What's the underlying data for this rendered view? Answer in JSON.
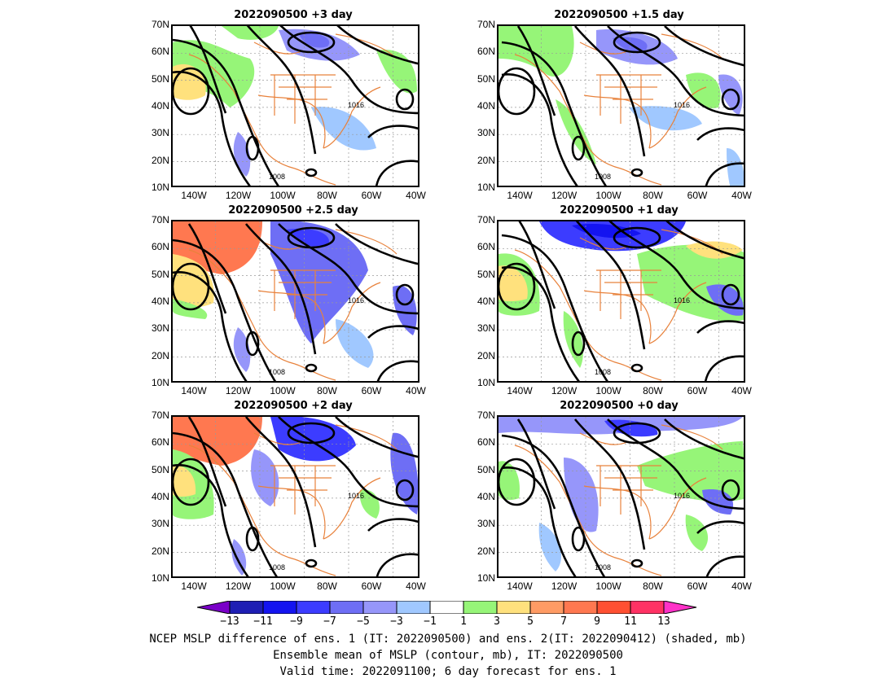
{
  "panels": [
    {
      "title": "2022090500  +3 day",
      "contour_labels": [
        "1016",
        "1008"
      ]
    },
    {
      "title": "2022090500  +1.5 day",
      "contour_labels": [
        "1016",
        "1008"
      ]
    },
    {
      "title": "2022090500  +2.5 day",
      "contour_labels": [
        "1016",
        "1008"
      ]
    },
    {
      "title": "2022090500  +1 day",
      "contour_labels": [
        "1016",
        "1008"
      ]
    },
    {
      "title": "2022090500  +2 day",
      "contour_labels": [
        "1016",
        "1008"
      ]
    },
    {
      "title": "2022090500  +0 day",
      "contour_labels": [
        "1016",
        "1008"
      ]
    }
  ],
  "lat_labels": [
    "70N",
    "60N",
    "50N",
    "40N",
    "30N",
    "20N",
    "10N"
  ],
  "lon_labels": [
    "140W",
    "120W",
    "100W",
    "80W",
    "60W",
    "40W"
  ],
  "colorbar": {
    "labels": [
      "−13",
      "−11",
      "−9",
      "−7",
      "−5",
      "−3",
      "−1",
      "1",
      "3",
      "5",
      "7",
      "9",
      "11",
      "13"
    ],
    "colors": [
      "#7a00c8",
      "#1e1eb4",
      "#1414f0",
      "#3c3cff",
      "#6e6ef5",
      "#9696fa",
      "#a0c8ff",
      "#ffffff",
      "#96f578",
      "#ffe17d",
      "#ff9b64",
      "#ff7850",
      "#ff5032",
      "#ff3264",
      "#ff32c8"
    ]
  },
  "caption": {
    "line1": "NCEP MSLP difference of ens. 1 (IT: 2022090500) and ens. 2(IT: 2022090412) (shaded, mb)",
    "line2": "Ensemble mean of MSLP (contour, mb), IT: 2022090500",
    "line3": "Valid time: 2022091100; 6 day forecast for ens. 1"
  }
}
